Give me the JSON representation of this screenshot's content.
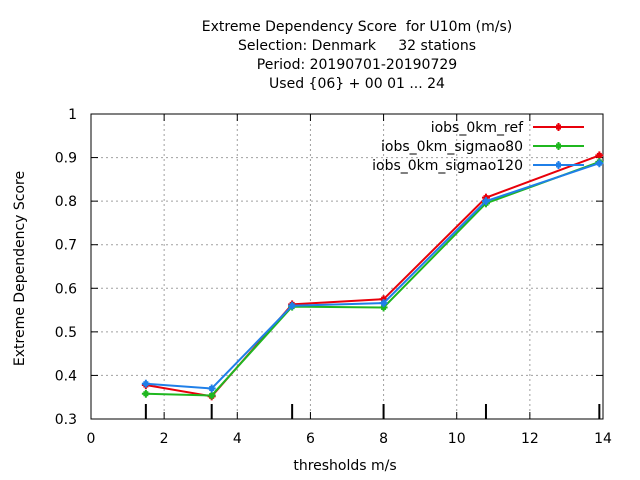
{
  "chart_data": {
    "type": "line",
    "title_lines": [
      "Extreme Dependency Score  for U10m (m/s)",
      "Selection: Denmark     32 stations",
      "Period: 20190701-20190729",
      "Used {06} + 00 01 ... 24"
    ],
    "xlabel": "thresholds m/s",
    "ylabel": "Extreme Dependency Score",
    "xlim": [
      0,
      14
    ],
    "ylim": [
      0.3,
      1
    ],
    "xticks": [
      0,
      2,
      4,
      6,
      8,
      10,
      12,
      14
    ],
    "yticks": [
      0.3,
      0.4,
      0.5,
      0.6,
      0.7,
      0.8,
      0.9,
      1
    ],
    "ytick_labels": [
      "0.3",
      "0.4",
      "0.5",
      "0.6",
      "0.7",
      "0.8",
      "0.9",
      "1"
    ],
    "threshold_markers": [
      1.5,
      3.3,
      5.5,
      8.0,
      10.8,
      13.9
    ],
    "grid": true,
    "legend_position": "top-right",
    "series": [
      {
        "name": "iobs_0km_ref",
        "color": "#e8000b",
        "x": [
          1.5,
          3.3,
          5.5,
          8.0,
          10.8,
          13.9
        ],
        "y": [
          0.378,
          0.352,
          0.563,
          0.575,
          0.808,
          0.905
        ]
      },
      {
        "name": "iobs_0km_sigmao80",
        "color": "#1fb71f",
        "x": [
          1.5,
          3.3,
          5.5,
          8.0,
          10.8,
          13.9
        ],
        "y": [
          0.358,
          0.354,
          0.558,
          0.556,
          0.795,
          0.89
        ]
      },
      {
        "name": "iobs_0km_sigmao120",
        "color": "#1f7fe8",
        "x": [
          1.5,
          3.3,
          5.5,
          8.0,
          10.8,
          13.9
        ],
        "y": [
          0.381,
          0.37,
          0.56,
          0.566,
          0.8,
          0.887
        ]
      }
    ]
  }
}
